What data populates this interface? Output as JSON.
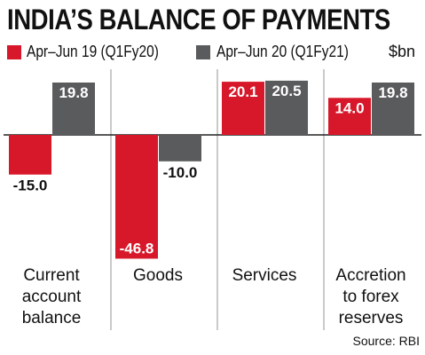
{
  "title": "INDIA’S BALANCE OF PAYMENTS",
  "legend": {
    "series1_label": "Apr–Jun 19 (Q1Fy20)",
    "series2_label": "Apr–Jun 20 (Q1Fy21)",
    "unit": "$bn"
  },
  "source": "Source: RBI",
  "colors": {
    "series1": "#d7182a",
    "series2": "#5a5b5d"
  },
  "chart_data": {
    "type": "bar",
    "categories": [
      [
        "Current",
        "account",
        "balance"
      ],
      [
        "Goods"
      ],
      [
        "Services"
      ],
      [
        "Accretion",
        "to forex",
        "reserves"
      ]
    ],
    "series": [
      {
        "name": "Apr–Jun 19 (Q1Fy20)",
        "values": [
          -15.0,
          -46.8,
          20.1,
          14.0
        ],
        "labels": [
          "-15.0",
          "-46.8",
          "20.1",
          "14.0"
        ]
      },
      {
        "name": "Apr–Jun 20 (Q1Fy21)",
        "values": [
          19.8,
          -10.0,
          20.5,
          19.8
        ],
        "labels": [
          "19.8",
          "-10.0",
          "20.5",
          "19.8"
        ]
      }
    ],
    "unit": "$bn",
    "grid": false
  }
}
